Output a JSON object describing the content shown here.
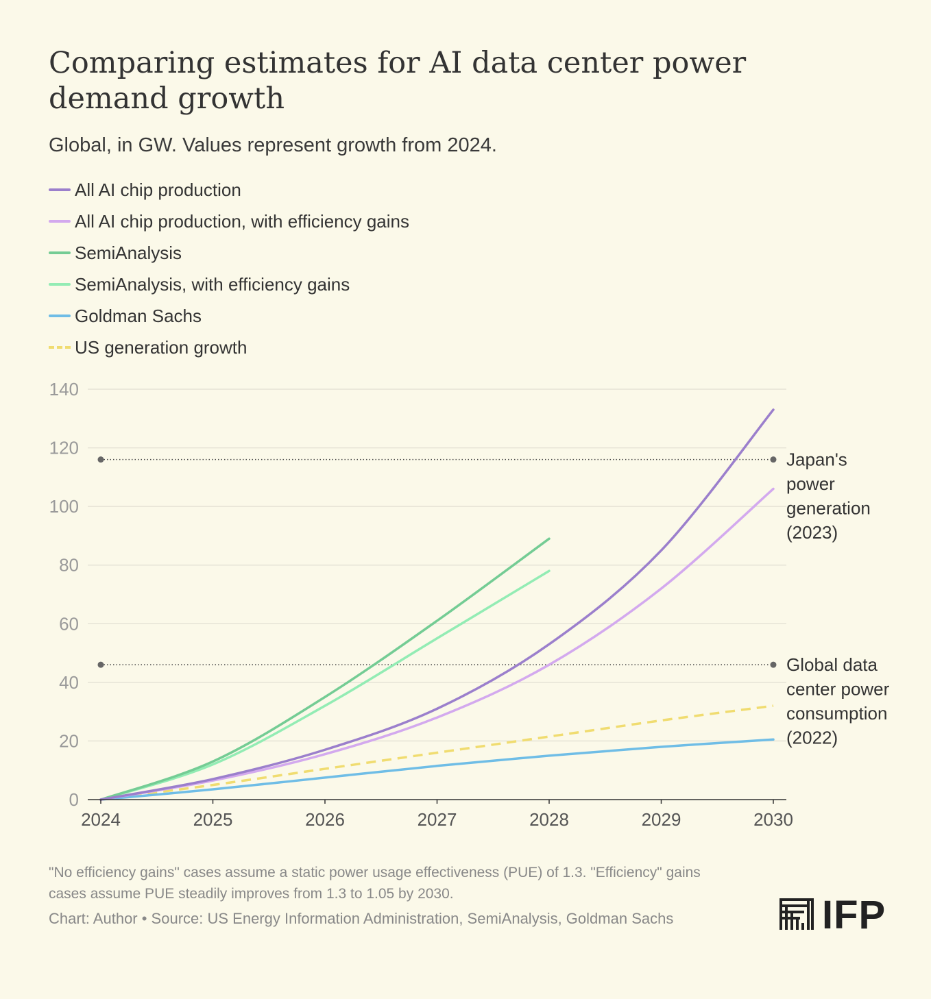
{
  "title": "Comparing estimates for AI data center power demand growth",
  "subtitle": "Global, in GW. Values represent growth from 2024.",
  "colors": {
    "background": "#fbf9e9",
    "all_ai": "#9b7fcc",
    "all_ai_eff": "#d3a9ee",
    "semianalysis": "#74cc94",
    "semianalysis_eff": "#93ecb4",
    "goldman": "#6fbde6",
    "us_gen": "#f0dc70",
    "reference": "#444444"
  },
  "legend": [
    {
      "label": "All AI chip production",
      "color": "#9b7fcc",
      "dashed": false
    },
    {
      "label": "All AI chip production, with efficiency gains",
      "color": "#d3a9ee",
      "dashed": false
    },
    {
      "label": "SemiAnalysis",
      "color": "#74cc94",
      "dashed": false
    },
    {
      "label": "SemiAnalysis, with efficiency gains",
      "color": "#93ecb4",
      "dashed": false
    },
    {
      "label": "Goldman Sachs",
      "color": "#6fbde6",
      "dashed": false
    },
    {
      "label": "US generation growth",
      "color": "#f0dc70",
      "dashed": true
    }
  ],
  "chart_data": {
    "type": "line",
    "xlim": [
      2024,
      2030
    ],
    "ylim": [
      0,
      140
    ],
    "x_ticks": [
      "2024",
      "2025",
      "2026",
      "2027",
      "2028",
      "2029",
      "2030"
    ],
    "y_ticks": [
      "0",
      "20",
      "40",
      "60",
      "80",
      "100",
      "120",
      "140"
    ],
    "grid": true,
    "series": [
      {
        "name": "All AI chip production",
        "color": "#9b7fcc",
        "dashed": false,
        "points": [
          [
            2024,
            0
          ],
          [
            2025,
            7
          ],
          [
            2026,
            17
          ],
          [
            2027,
            31
          ],
          [
            2028,
            53
          ],
          [
            2029,
            85
          ],
          [
            2030,
            133
          ]
        ]
      },
      {
        "name": "All AI chip production, with efficiency gains",
        "color": "#d3a9ee",
        "dashed": false,
        "points": [
          [
            2024,
            0
          ],
          [
            2025,
            6.5
          ],
          [
            2026,
            15.5
          ],
          [
            2027,
            28
          ],
          [
            2028,
            46
          ],
          [
            2029,
            72
          ],
          [
            2030,
            106
          ]
        ]
      },
      {
        "name": "SemiAnalysis",
        "color": "#74cc94",
        "dashed": false,
        "points": [
          [
            2024,
            0
          ],
          [
            2025,
            13
          ],
          [
            2026,
            35
          ],
          [
            2027,
            61
          ],
          [
            2028,
            89
          ]
        ]
      },
      {
        "name": "SemiAnalysis, with efficiency gains",
        "color": "#93ecb4",
        "dashed": false,
        "points": [
          [
            2024,
            0
          ],
          [
            2025,
            12
          ],
          [
            2026,
            32
          ],
          [
            2027,
            55
          ],
          [
            2028,
            78
          ]
        ]
      },
      {
        "name": "Goldman Sachs",
        "color": "#6fbde6",
        "dashed": false,
        "points": [
          [
            2024,
            0
          ],
          [
            2025,
            3.5
          ],
          [
            2026,
            7.5
          ],
          [
            2027,
            11.5
          ],
          [
            2028,
            15
          ],
          [
            2029,
            18
          ],
          [
            2030,
            20.5
          ]
        ]
      },
      {
        "name": "US generation growth",
        "color": "#f0dc70",
        "dashed": true,
        "points": [
          [
            2024,
            0
          ],
          [
            2025,
            5
          ],
          [
            2026,
            10.5
          ],
          [
            2027,
            16
          ],
          [
            2028,
            21.5
          ],
          [
            2029,
            27
          ],
          [
            2030,
            32
          ]
        ]
      }
    ],
    "reference_lines": [
      {
        "y": 116,
        "label": [
          "Japan's",
          "power",
          "generation",
          "(2023)"
        ]
      },
      {
        "y": 46,
        "label": [
          "Global data",
          "center power",
          "consumption",
          "(2022)"
        ]
      }
    ]
  },
  "footnote": "\"No efficiency gains\" cases assume a static power usage effectiveness (PUE) of 1.3. \"Efficiency\" gains cases assume PUE steadily improves from 1.3 to 1.05 by 2030.",
  "source": "Chart: Author • Source: US Energy Information Administration, SemiAnalysis, Goldman Sachs",
  "logo_text": "IFP"
}
